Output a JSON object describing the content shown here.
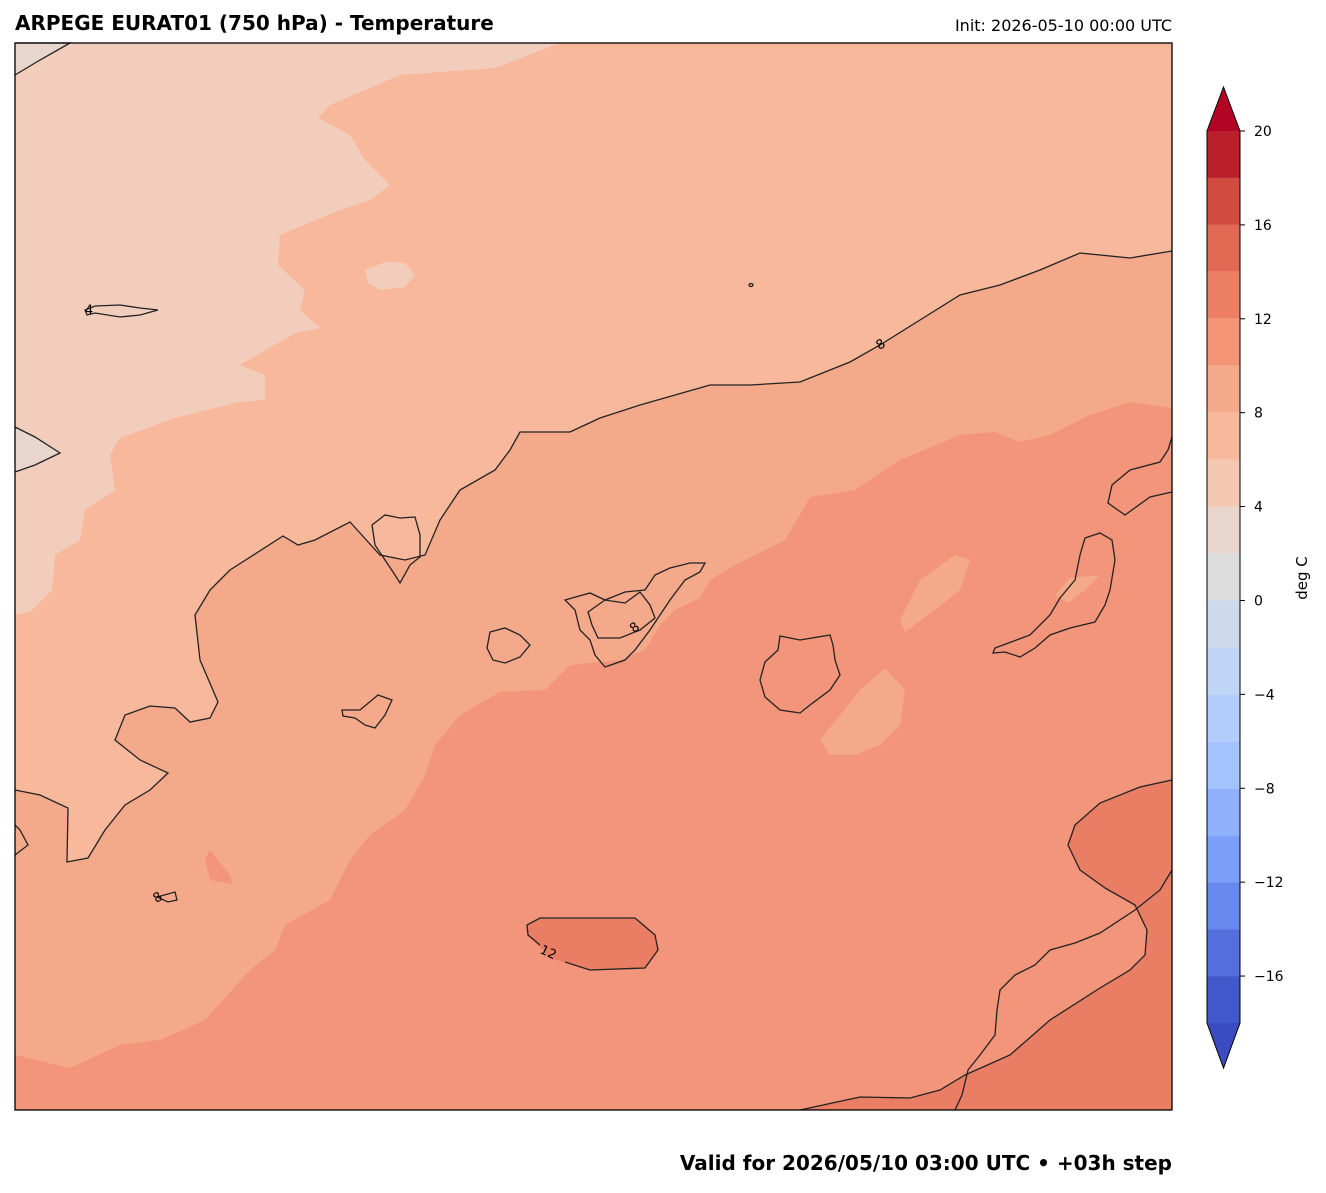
{
  "header": {
    "title": "ARPEGE EURAT01 (750 hPa) - Temperature",
    "init": "Init: 2026-05-10 00:00 UTC"
  },
  "footer": {
    "valid": "Valid for 2026/05/10 03:00 UTC  • +03h step"
  },
  "contour_labels": [
    "8",
    "8",
    "12",
    "4",
    "8"
  ],
  "colorbar": {
    "label": "deg C",
    "lim": [
      -18,
      20
    ],
    "levels": [
      -18,
      -16,
      -14,
      -12,
      -10,
      -8,
      -6,
      -4,
      -2,
      0,
      2,
      4,
      6,
      8,
      10,
      12,
      14,
      16,
      18,
      20
    ],
    "colors": [
      "#4257c9",
      "#536edd",
      "#6788ee",
      "#7b9ff9",
      "#8fb1fe",
      "#a3c2fe",
      "#b2ccfb",
      "#c0d4f5",
      "#cdd9ec",
      "#dddddd",
      "#e8d6cc",
      "#f3c7b1",
      "#f7b89c",
      "#f5a98b",
      "#f39475",
      "#ec7f63",
      "#e16853",
      "#d24b40",
      "#bc1f2c"
    ],
    "under_color": "#3b4cc0",
    "over_color": "#b40426",
    "ticks": [
      {
        "value": -16,
        "label": "−16"
      },
      {
        "value": -12,
        "label": "−12"
      },
      {
        "value": -8,
        "label": "−8"
      },
      {
        "value": -4,
        "label": "−4"
      },
      0,
      4,
      8,
      12,
      16,
      20
    ]
  }
}
